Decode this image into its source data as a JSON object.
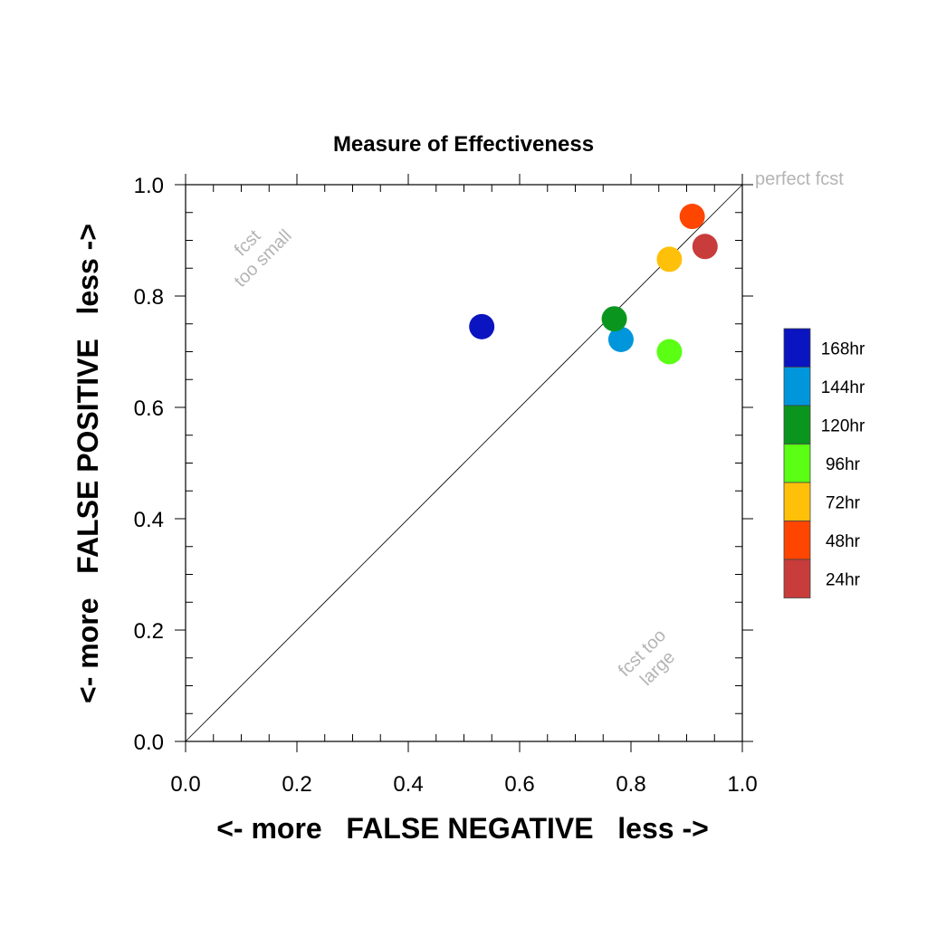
{
  "chart_data": {
    "type": "scatter",
    "title": "Measure of Effectiveness",
    "xlabel": "<- more   FALSE NEGATIVE   less ->",
    "ylabel": "<- more   FALSE POSITIVE   less ->",
    "xlim": [
      0.0,
      1.0
    ],
    "ylim": [
      0.0,
      1.0
    ],
    "xticks": [
      "0.0",
      "0.2",
      "0.4",
      "0.6",
      "0.8",
      "1.0"
    ],
    "yticks": [
      "0.0",
      "0.2",
      "0.4",
      "0.6",
      "0.8",
      "1.0"
    ],
    "grid": false,
    "reference_line": {
      "from": [
        0,
        0
      ],
      "to": [
        1,
        1
      ]
    },
    "annotations": {
      "perfect": "perfect fcst",
      "too_small_1": "fcst",
      "too_small_2": "too small",
      "too_large_1": "fcst too",
      "too_large_2": "large"
    },
    "legend_placement": "right",
    "series": [
      {
        "name": "168hr",
        "color": "#0a14c0",
        "x": 0.532,
        "y": 0.745
      },
      {
        "name": "144hr",
        "color": "#0096dc",
        "x": 0.782,
        "y": 0.722
      },
      {
        "name": "120hr",
        "color": "#0a961e",
        "x": 0.77,
        "y": 0.759
      },
      {
        "name": "96hr",
        "color": "#5aff14",
        "x": 0.869,
        "y": 0.7
      },
      {
        "name": "72hr",
        "color": "#ffc00a",
        "x": 0.869,
        "y": 0.866
      },
      {
        "name": "48hr",
        "color": "#ff4600",
        "x": 0.91,
        "y": 0.943
      },
      {
        "name": "24hr",
        "color": "#c83c3c",
        "x": 0.933,
        "y": 0.889
      }
    ]
  }
}
